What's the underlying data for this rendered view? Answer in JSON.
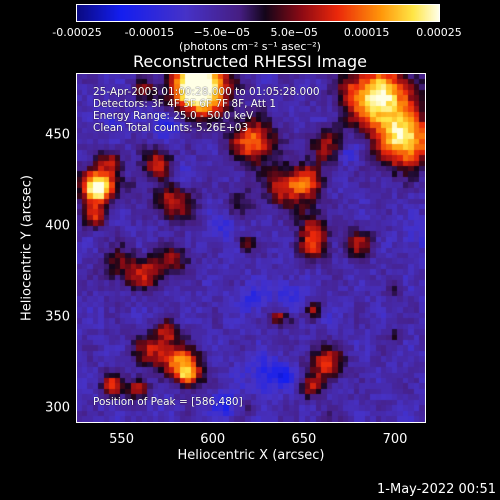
{
  "chart_data": {
    "type": "heatmap",
    "title": "Reconstructed RHESSI Image",
    "colorbar": {
      "ticks": [
        "-0.00025",
        "-0.00015",
        "−5.0e−05",
        "5.0e−05",
        "0.00015",
        "0.00025"
      ],
      "tick_values": [
        -0.00025,
        -0.00015,
        -5e-05,
        5e-05,
        0.00015,
        0.00025
      ],
      "range": [
        -0.00025,
        0.00025
      ],
      "unit_label": "(photons cm⁻² s⁻¹ asec⁻²)"
    },
    "xlabel": "Heliocentric X (arcsec)",
    "ylabel": "Heliocentric Y (arcsec)",
    "x_ticks": [
      550,
      600,
      650,
      700
    ],
    "y_ticks": [
      300,
      350,
      400,
      450
    ],
    "xlim": [
      525,
      717
    ],
    "ylim": [
      292,
      484
    ],
    "annotations": [
      "25-Apr-2003 01:00:28.000 to 01:05:28.000",
      "Detectors: 3F 4F 5F 6F 7F 8F, Att 1",
      "Energy Range: 25.0 - 50.0 keV",
      "Clean     Total counts: 5.26E+03"
    ],
    "peak_label": "Position of Peak = [586,480]",
    "peak_position": [
      586,
      480
    ]
  },
  "footer": {
    "date": "1-May-2022 00:51"
  },
  "colors": {
    "background": "#000000",
    "foreground": "#ffffff"
  }
}
